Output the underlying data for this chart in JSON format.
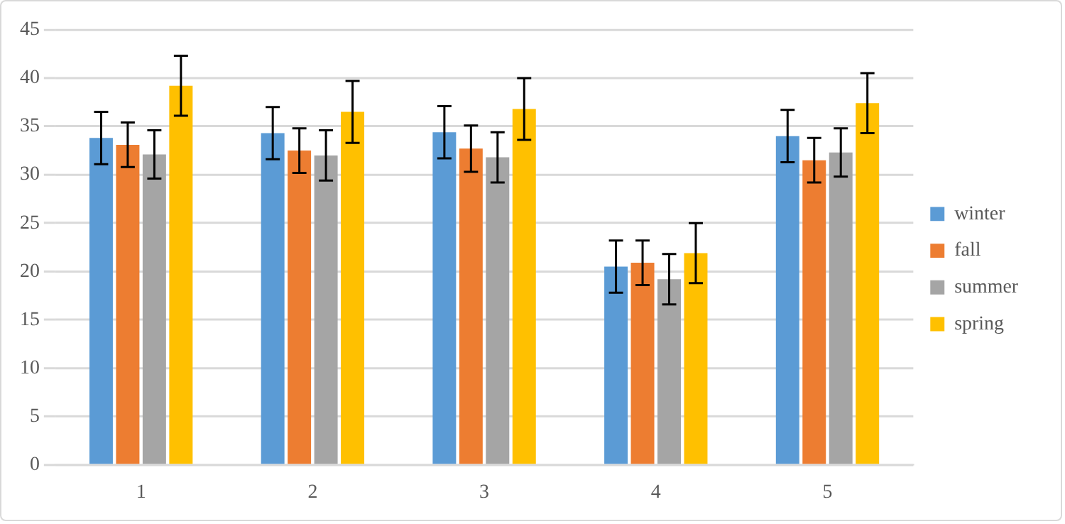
{
  "chart_data": {
    "type": "bar",
    "categories": [
      "1",
      "2",
      "3",
      "4",
      "5"
    ],
    "series": [
      {
        "name": "winter",
        "color": "#5b9bd5",
        "values": [
          33.8,
          34.3,
          34.4,
          20.5,
          34.0
        ],
        "errors": [
          2.7,
          2.7,
          2.7,
          2.7,
          2.7
        ]
      },
      {
        "name": "fall",
        "color": "#ed7d31",
        "values": [
          33.1,
          32.5,
          32.7,
          20.9,
          31.5
        ],
        "errors": [
          2.3,
          2.3,
          2.4,
          2.3,
          2.3
        ]
      },
      {
        "name": "summer",
        "color": "#a5a5a5",
        "values": [
          32.1,
          32.0,
          31.8,
          19.2,
          32.3
        ],
        "errors": [
          2.5,
          2.6,
          2.6,
          2.6,
          2.5
        ]
      },
      {
        "name": "spring",
        "color": "#ffc000",
        "values": [
          39.2,
          36.5,
          36.8,
          21.9,
          37.4
        ],
        "errors": [
          3.1,
          3.2,
          3.2,
          3.1,
          3.1
        ]
      }
    ],
    "ylim": [
      0,
      45
    ],
    "yticks": [
      0,
      5,
      10,
      15,
      20,
      25,
      30,
      35,
      40,
      45
    ],
    "grid": "y",
    "legend": "right"
  }
}
